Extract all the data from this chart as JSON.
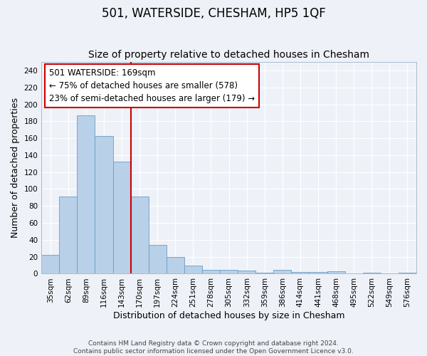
{
  "title": "501, WATERSIDE, CHESHAM, HP5 1QF",
  "subtitle": "Size of property relative to detached houses in Chesham",
  "xlabel": "Distribution of detached houses by size in Chesham",
  "ylabel": "Number of detached properties",
  "categories": [
    "35sqm",
    "62sqm",
    "89sqm",
    "116sqm",
    "143sqm",
    "170sqm",
    "197sqm",
    "224sqm",
    "251sqm",
    "278sqm",
    "305sqm",
    "332sqm",
    "359sqm",
    "386sqm",
    "414sqm",
    "441sqm",
    "468sqm",
    "495sqm",
    "522sqm",
    "549sqm",
    "576sqm"
  ],
  "values": [
    22,
    91,
    187,
    163,
    132,
    91,
    34,
    20,
    10,
    5,
    5,
    4,
    1,
    5,
    2,
    2,
    3,
    0,
    1,
    0,
    1
  ],
  "bar_color": "#b8d0e8",
  "bar_edge_color": "#6a9ec5",
  "ylim": [
    0,
    250
  ],
  "yticks": [
    0,
    20,
    40,
    60,
    80,
    100,
    120,
    140,
    160,
    180,
    200,
    220,
    240
  ],
  "redline_x": 4.5,
  "annotation_line1": "501 WATERSIDE: 169sqm",
  "annotation_line2": "← 75% of detached houses are smaller (578)",
  "annotation_line3": "23% of semi-detached houses are larger (179) →",
  "annotation_box_color": "#ffffff",
  "annotation_box_edge": "#cc0000",
  "redline_color": "#cc0000",
  "footer1": "Contains HM Land Registry data © Crown copyright and database right 2024.",
  "footer2": "Contains public sector information licensed under the Open Government Licence v3.0.",
  "background_color": "#eef2f8",
  "grid_color": "#ffffff",
  "title_fontsize": 12,
  "subtitle_fontsize": 10,
  "axis_label_fontsize": 9,
  "tick_fontsize": 7.5,
  "annotation_fontsize": 8.5
}
